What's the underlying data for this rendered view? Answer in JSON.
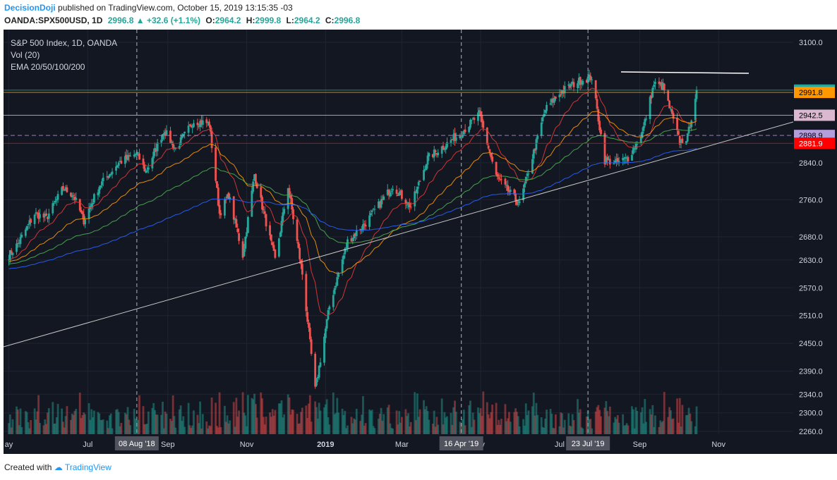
{
  "header": {
    "author": "DecisionDoji",
    "published_text": "published on TradingView.com, October 15, 2019 13:15:35 -03",
    "symbol": "OANDA:SPX500USD, 1D",
    "last": "2996.8",
    "change": "+32.6 (+1.1%)",
    "o_label": "O:",
    "o": "2964.2",
    "h_label": "H:",
    "h": "2999.8",
    "l_label": "L:",
    "l": "2964.2",
    "c_label": "C:",
    "c": "2996.8"
  },
  "legend": {
    "title": "S&P 500 Index, 1D, OANDA",
    "vol": "Vol (20)",
    "ema": "EMA 20/50/100/200"
  },
  "footer": {
    "created_with": "Created with",
    "brand": "TradingView"
  },
  "colors": {
    "bg": "#131722",
    "up": "#26a69a",
    "down": "#ef5350",
    "ema20": "#e53935",
    "ema50": "#ff9800",
    "ema100": "#4caf50",
    "ema200": "#2962ff"
  },
  "chart_data": {
    "type": "candlestick",
    "ylim": [
      2250,
      3130
    ],
    "y_ticks": [
      3100,
      2840,
      2760,
      2680,
      2630,
      2570,
      2510,
      2450,
      2390,
      2340,
      2300,
      2260
    ],
    "x_ticks": [
      {
        "label": "ay",
        "date": "2018-05"
      },
      {
        "label": "Jul",
        "date": "2018-07"
      },
      {
        "label": "Sep",
        "date": "2018-09"
      },
      {
        "label": "Nov",
        "date": "2018-11"
      },
      {
        "label": "2019",
        "date": "2019-01"
      },
      {
        "label": "Mar",
        "date": "2019-03"
      },
      {
        "label": "ay",
        "date": "2019-05"
      },
      {
        "label": "Jul",
        "date": "2019-07"
      },
      {
        "label": "Sep",
        "date": "2019-09"
      },
      {
        "label": "Nov",
        "date": "2019-11"
      }
    ],
    "highlighted_dates": [
      {
        "label": "08 Aug '18",
        "date": "2018-08-08"
      },
      {
        "label": "16 Apr '19",
        "date": "2019-04-16"
      },
      {
        "label": "23 Jul '19",
        "date": "2019-07-23"
      }
    ],
    "price_levels": [
      {
        "label": "2996.8",
        "value": 2996.8,
        "bg": "#26a69a",
        "fg": "#ffffff"
      },
      {
        "label": "2991.8",
        "value": 2991.8,
        "bg": "#ff9800",
        "fg": "#000000"
      },
      {
        "label": "2942.5",
        "value": 2942.5,
        "bg": "#d9b8d0",
        "fg": "#000000"
      },
      {
        "label": "2898.9",
        "value": 2898.9,
        "bg": "#b39ddb",
        "fg": "#000000"
      },
      {
        "label": "2881.9",
        "value": 2881.9,
        "bg": "#ff0000",
        "fg": "#ffffff"
      }
    ],
    "approx_close_path": [
      {
        "date": "2018-05-01",
        "value": 2640
      },
      {
        "date": "2018-05-08",
        "value": 2665
      },
      {
        "date": "2018-05-21",
        "value": 2730
      },
      {
        "date": "2018-05-30",
        "value": 2720
      },
      {
        "date": "2018-06-12",
        "value": 2785
      },
      {
        "date": "2018-06-20",
        "value": 2770
      },
      {
        "date": "2018-06-28",
        "value": 2715
      },
      {
        "date": "2018-07-10",
        "value": 2790
      },
      {
        "date": "2018-07-25",
        "value": 2840
      },
      {
        "date": "2018-08-08",
        "value": 2860
      },
      {
        "date": "2018-08-15",
        "value": 2820
      },
      {
        "date": "2018-08-29",
        "value": 2910
      },
      {
        "date": "2018-09-07",
        "value": 2870
      },
      {
        "date": "2018-09-21",
        "value": 2930
      },
      {
        "date": "2018-10-03",
        "value": 2925
      },
      {
        "date": "2018-10-11",
        "value": 2730
      },
      {
        "date": "2018-10-18",
        "value": 2770
      },
      {
        "date": "2018-10-29",
        "value": 2640
      },
      {
        "date": "2018-11-07",
        "value": 2815
      },
      {
        "date": "2018-11-23",
        "value": 2630
      },
      {
        "date": "2018-12-03",
        "value": 2790
      },
      {
        "date": "2018-12-14",
        "value": 2600
      },
      {
        "date": "2018-12-24",
        "value": 2350
      },
      {
        "date": "2019-01-04",
        "value": 2530
      },
      {
        "date": "2019-01-18",
        "value": 2670
      },
      {
        "date": "2019-02-01",
        "value": 2710
      },
      {
        "date": "2019-02-22",
        "value": 2790
      },
      {
        "date": "2019-03-08",
        "value": 2745
      },
      {
        "date": "2019-03-21",
        "value": 2850
      },
      {
        "date": "2019-04-16",
        "value": 2905
      },
      {
        "date": "2019-04-30",
        "value": 2945
      },
      {
        "date": "2019-05-13",
        "value": 2810
      },
      {
        "date": "2019-05-31",
        "value": 2750
      },
      {
        "date": "2019-06-20",
        "value": 2955
      },
      {
        "date": "2019-07-03",
        "value": 2995
      },
      {
        "date": "2019-07-15",
        "value": 3015
      },
      {
        "date": "2019-07-26",
        "value": 3025
      },
      {
        "date": "2019-08-05",
        "value": 2845
      },
      {
        "date": "2019-08-14",
        "value": 2840
      },
      {
        "date": "2019-08-23",
        "value": 2850
      },
      {
        "date": "2019-09-03",
        "value": 2905
      },
      {
        "date": "2019-09-12",
        "value": 3010
      },
      {
        "date": "2019-09-19",
        "value": 3005
      },
      {
        "date": "2019-10-02",
        "value": 2885
      },
      {
        "date": "2019-10-08",
        "value": 2895
      },
      {
        "date": "2019-10-15",
        "value": 2996.8
      }
    ]
  }
}
